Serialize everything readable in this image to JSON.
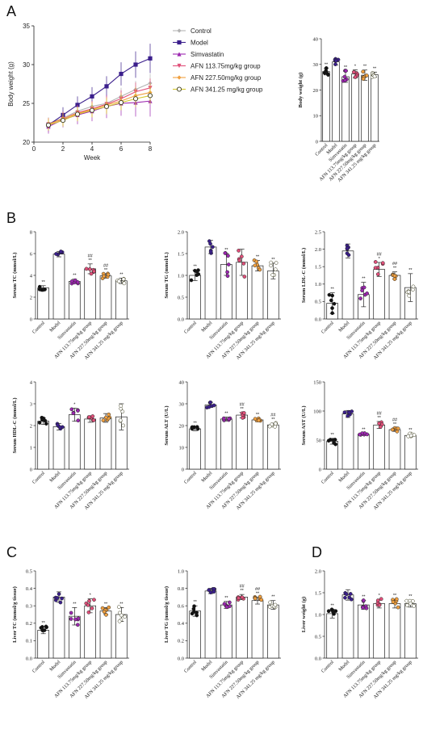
{
  "panel_letters": {
    "A": "A",
    "B": "B",
    "C": "C",
    "D": "D"
  },
  "colors": {
    "Control": "#b3b3b3",
    "Model": "#3b1f8c",
    "Simvastatin": "#9c27b0",
    "AFN 113.75mg/kg group": "#e0507a",
    "AFN 227.50mg/kg group": "#f0a040",
    "AFN 341.25 mg/kg group": "#d4c830"
  },
  "chart_data": [
    {
      "id": "A-line",
      "type": "line",
      "title": "",
      "xlabel": "Week",
      "ylabel": "Body weight (g)",
      "xlim": [
        0,
        8
      ],
      "ylim": [
        20,
        35
      ],
      "xticks": [
        "0",
        "2",
        "4",
        "6",
        "8"
      ],
      "yticks": [
        "20",
        "25",
        "30",
        "35"
      ],
      "legend_position": "top-right",
      "x": [
        1,
        2,
        3,
        4,
        5,
        6,
        7,
        8
      ],
      "series": [
        {
          "name": "Control",
          "marker": "diamond",
          "values": [
            22.4,
            23.1,
            24.0,
            24.6,
            25.0,
            25.9,
            26.8,
            27.6
          ],
          "err": [
            0.8,
            0.9,
            0.9,
            1.0,
            1.0,
            1.1,
            1.1,
            1.2
          ]
        },
        {
          "name": "Model",
          "marker": "square",
          "values": [
            22.2,
            23.5,
            24.8,
            25.9,
            27.2,
            28.8,
            30.0,
            30.8
          ],
          "err": [
            0.8,
            1.0,
            1.1,
            1.2,
            1.3,
            1.5,
            1.7,
            1.9
          ]
        },
        {
          "name": "Simvastatin",
          "marker": "triangle-up",
          "values": [
            22.0,
            22.9,
            23.5,
            24.0,
            24.6,
            25.0,
            25.1,
            25.3
          ],
          "err": [
            0.9,
            1.0,
            1.2,
            1.3,
            1.5,
            1.6,
            1.8,
            2.0
          ]
        },
        {
          "name": "AFN 113.75mg/kg group",
          "marker": "triangle-down",
          "values": [
            22.3,
            23.0,
            23.8,
            24.3,
            24.9,
            25.6,
            26.5,
            27.0
          ],
          "err": [
            0.8,
            0.9,
            1.0,
            1.0,
            1.1,
            1.1,
            1.2,
            1.2
          ]
        },
        {
          "name": "AFN 227.50mg/kg group",
          "marker": "diamond",
          "values": [
            22.3,
            23.0,
            23.7,
            24.2,
            24.8,
            25.3,
            26.0,
            26.4
          ],
          "err": [
            0.8,
            0.8,
            0.9,
            1.0,
            1.0,
            1.1,
            1.1,
            1.2
          ]
        },
        {
          "name": "AFN 341.25 mg/kg group",
          "marker": "circle",
          "values": [
            22.2,
            22.8,
            23.6,
            24.1,
            24.6,
            25.1,
            25.6,
            26.0
          ],
          "err": [
            0.7,
            0.8,
            0.9,
            0.9,
            1.0,
            1.0,
            1.1,
            1.1
          ]
        }
      ]
    },
    {
      "id": "A-bw",
      "type": "bar",
      "ylabel": "Body weight (g)",
      "ylim": [
        0,
        40
      ],
      "yticks": [
        "0",
        "10",
        "20",
        "30",
        "40"
      ],
      "values": [
        27.2,
        31.0,
        25.2,
        26.3,
        25.8,
        26.0
      ],
      "err": [
        1.3,
        1.2,
        2.2,
        1.6,
        2.0,
        1.0
      ],
      "stars": [
        "**",
        "",
        "**",
        "*",
        "**",
        "**"
      ]
    },
    {
      "id": "B-tc",
      "type": "bar",
      "ylabel": "Serum TC (mmol/L)",
      "ylim": [
        0,
        8
      ],
      "yticks": [
        "0",
        "2",
        "4",
        "6",
        "8"
      ],
      "values": [
        2.85,
        5.95,
        3.45,
        4.6,
        3.95,
        3.5
      ],
      "err": [
        0.2,
        0.25,
        0.2,
        0.45,
        0.2,
        0.25
      ],
      "stars": [
        "**",
        "",
        "**",
        "##\n**",
        "##\n**",
        "**"
      ]
    },
    {
      "id": "B-tg",
      "type": "bar",
      "ylabel": "Serum TG (mmol/L)",
      "ylim": [
        0,
        2.0
      ],
      "yticks": [
        "0.0",
        "0.5",
        "1.0",
        "1.5",
        "2.0"
      ],
      "values": [
        1.0,
        1.65,
        1.25,
        1.3,
        1.22,
        1.1
      ],
      "err": [
        0.12,
        0.15,
        0.25,
        0.3,
        0.12,
        0.18
      ],
      "stars": [
        "**",
        "",
        "**",
        "",
        "**",
        "**"
      ]
    },
    {
      "id": "B-ldl",
      "type": "bar",
      "ylabel": "Serum LDL-C (mmol/L)",
      "ylim": [
        0,
        2.5
      ],
      "yticks": [
        "0.0",
        "0.5",
        "1.0",
        "1.5",
        "2.0",
        "2.5"
      ],
      "values": [
        0.45,
        1.95,
        0.7,
        1.42,
        1.25,
        0.9
      ],
      "err": [
        0.3,
        0.2,
        0.35,
        0.2,
        0.1,
        0.4
      ],
      "stars": [
        "**",
        "",
        "**",
        "##\n*",
        "##\n**",
        "**"
      ]
    },
    {
      "id": "B-hdl",
      "type": "bar",
      "ylabel": "Serum HDL-C (mmol/L)",
      "ylim": [
        0,
        4
      ],
      "yticks": [
        "0",
        "1",
        "2",
        "3",
        "4"
      ],
      "values": [
        2.2,
        1.95,
        2.5,
        2.3,
        2.35,
        2.4
      ],
      "err": [
        0.15,
        0.15,
        0.3,
        0.15,
        0.2,
        0.6
      ],
      "stars": [
        "",
        "",
        "*",
        "",
        "",
        ""
      ]
    },
    {
      "id": "B-alt",
      "type": "bar",
      "ylabel": "Serum ALT (U/L)",
      "ylim": [
        0,
        40
      ],
      "yticks": [
        "0",
        "10",
        "20",
        "30",
        "40"
      ],
      "values": [
        18.5,
        29.5,
        23.0,
        24.8,
        22.6,
        20.3
      ],
      "err": [
        0.9,
        1.2,
        0.9,
        1.2,
        0.8,
        0.8
      ],
      "stars": [
        "**",
        "",
        "**",
        "##\n**",
        "**",
        "##\n**"
      ]
    },
    {
      "id": "B-ast",
      "type": "bar",
      "ylabel": "Serum AST (U/L)",
      "ylim": [
        0,
        150
      ],
      "yticks": [
        "0",
        "50",
        "100",
        "150"
      ],
      "values": [
        48,
        95,
        60,
        76,
        68,
        58
      ],
      "err": [
        5,
        6,
        2,
        6,
        3,
        3
      ],
      "stars": [
        "**",
        "",
        "**",
        "##\n**",
        "##\n**",
        "**"
      ]
    },
    {
      "id": "C-tc",
      "type": "bar",
      "ylabel": "Liver TC (mmol/g tissue)",
      "ylim": [
        0,
        0.5
      ],
      "yticks": [
        "0.0",
        "0.1",
        "0.2",
        "0.3",
        "0.4",
        "0.5"
      ],
      "values": [
        0.16,
        0.35,
        0.24,
        0.3,
        0.27,
        0.25
      ],
      "err": [
        0.02,
        0.03,
        0.05,
        0.04,
        0.02,
        0.04
      ],
      "stars": [
        "**",
        "",
        "**",
        "*",
        "**",
        "**"
      ]
    },
    {
      "id": "C-tg",
      "type": "bar",
      "ylabel": "Liver TG (mmol/g tissue)",
      "ylim": [
        0,
        1.0
      ],
      "yticks": [
        "0.0",
        "0.2",
        "0.4",
        "0.6",
        "0.8",
        "1.0"
      ],
      "values": [
        0.54,
        0.77,
        0.61,
        0.7,
        0.66,
        0.61
      ],
      "err": [
        0.06,
        0.03,
        0.04,
        0.03,
        0.04,
        0.05
      ],
      "stars": [
        "**",
        "",
        "**",
        "##\n**",
        "##\n**",
        "**"
      ]
    },
    {
      "id": "D-lw",
      "type": "bar",
      "ylabel": "Liver weight (g)",
      "ylim": [
        0,
        2.0
      ],
      "yticks": [
        "0.0",
        "0.5",
        "1.0",
        "1.5",
        "2.0"
      ],
      "values": [
        1.02,
        1.45,
        1.22,
        1.25,
        1.25,
        1.25
      ],
      "err": [
        0.1,
        0.12,
        0.1,
        0.1,
        0.1,
        0.08
      ],
      "stars": [
        "**",
        "",
        "**",
        "*",
        "**",
        "**"
      ]
    }
  ],
  "bar_categories": [
    "Control",
    "Model",
    "Simvastatin",
    "AFN 113.75mg/kg group",
    "AFN 227.50mg/kg group",
    "AFN 341.25 mg/kg group"
  ]
}
